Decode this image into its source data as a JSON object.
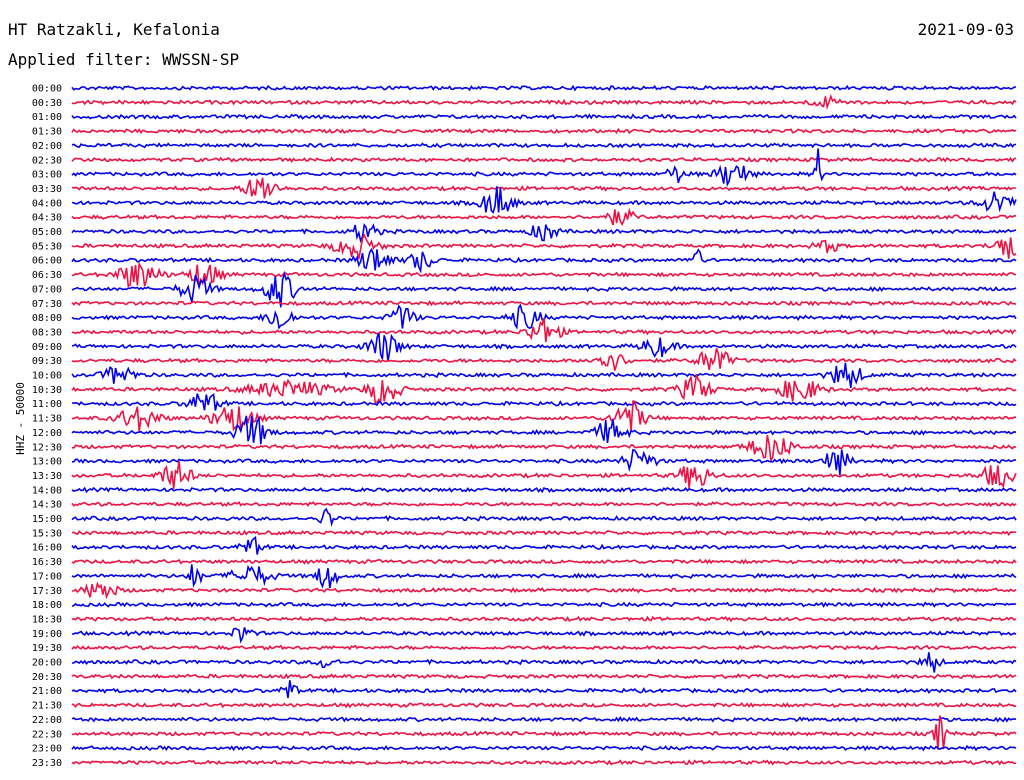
{
  "header": {
    "station": "HT Ratzakli, Kefalonia",
    "filter": "Applied filter: WWSSN-SP",
    "date": "2021-09-03"
  },
  "chart_data": {
    "type": "line",
    "title": "HT Ratzakli, Kefalonia",
    "subtitle": "Applied filter: WWSSN-SP",
    "date": "2021-09-03",
    "ylabel": "HHZ - 50000",
    "row_labels": [
      "00:00",
      "00:30",
      "01:00",
      "01:30",
      "02:00",
      "02:30",
      "03:00",
      "03:30",
      "04:00",
      "04:30",
      "05:00",
      "05:30",
      "06:00",
      "06:30",
      "07:00",
      "07:30",
      "08:00",
      "08:30",
      "09:00",
      "09:30",
      "10:00",
      "10:30",
      "11:00",
      "11:30",
      "12:00",
      "12:30",
      "13:00",
      "13:30",
      "14:00",
      "14:30",
      "15:00",
      "15:30",
      "16:00",
      "16:30",
      "17:00",
      "17:30",
      "18:00",
      "18:30",
      "19:00",
      "19:30",
      "20:00",
      "20:30",
      "21:00",
      "21:30",
      "22:00",
      "22:30",
      "23:00",
      "23:30"
    ],
    "trace_colors": [
      "#0000ee",
      "#ee1144"
    ],
    "grid": false,
    "bursts": [
      {
        "row": 1,
        "t": 0.8,
        "a": 5,
        "w": 0.015
      },
      {
        "row": 6,
        "t": 0.64,
        "a": 8,
        "w": 0.01
      },
      {
        "row": 6,
        "t": 0.7,
        "a": 14,
        "w": 0.015
      },
      {
        "row": 6,
        "t": 0.79,
        "a": 28,
        "w": 0.003
      },
      {
        "row": 7,
        "t": 0.2,
        "a": 14,
        "w": 0.015
      },
      {
        "row": 8,
        "t": 0.45,
        "a": 16,
        "w": 0.015
      },
      {
        "row": 8,
        "t": 0.98,
        "a": 12,
        "w": 0.015
      },
      {
        "row": 9,
        "t": 0.58,
        "a": 8,
        "w": 0.015
      },
      {
        "row": 10,
        "t": 0.31,
        "a": 10,
        "w": 0.012
      },
      {
        "row": 10,
        "t": 0.5,
        "a": 10,
        "w": 0.012
      },
      {
        "row": 11,
        "t": 0.3,
        "a": 12,
        "w": 0.02
      },
      {
        "row": 11,
        "t": 0.8,
        "a": 6,
        "w": 0.012
      },
      {
        "row": 11,
        "t": 0.99,
        "a": 14,
        "w": 0.012
      },
      {
        "row": 12,
        "t": 0.32,
        "a": 14,
        "w": 0.015
      },
      {
        "row": 12,
        "t": 0.37,
        "a": 10,
        "w": 0.012
      },
      {
        "row": 12,
        "t": 0.66,
        "a": 14,
        "w": 0.006
      },
      {
        "row": 13,
        "t": 0.07,
        "a": 14,
        "w": 0.02
      },
      {
        "row": 13,
        "t": 0.14,
        "a": 13,
        "w": 0.015
      },
      {
        "row": 14,
        "t": 0.13,
        "a": 14,
        "w": 0.015
      },
      {
        "row": 14,
        "t": 0.22,
        "a": 18,
        "w": 0.015
      },
      {
        "row": 16,
        "t": 0.22,
        "a": 14,
        "w": 0.012
      },
      {
        "row": 16,
        "t": 0.35,
        "a": 12,
        "w": 0.012
      },
      {
        "row": 16,
        "t": 0.48,
        "a": 12,
        "w": 0.015
      },
      {
        "row": 17,
        "t": 0.5,
        "a": 14,
        "w": 0.015
      },
      {
        "row": 18,
        "t": 0.33,
        "a": 16,
        "w": 0.015
      },
      {
        "row": 18,
        "t": 0.62,
        "a": 10,
        "w": 0.015
      },
      {
        "row": 19,
        "t": 0.57,
        "a": 10,
        "w": 0.015
      },
      {
        "row": 19,
        "t": 0.68,
        "a": 14,
        "w": 0.015
      },
      {
        "row": 20,
        "t": 0.05,
        "a": 10,
        "w": 0.015
      },
      {
        "row": 20,
        "t": 0.82,
        "a": 14,
        "w": 0.015
      },
      {
        "row": 21,
        "t": 0.23,
        "a": 8,
        "w": 0.04
      },
      {
        "row": 21,
        "t": 0.33,
        "a": 16,
        "w": 0.015
      },
      {
        "row": 21,
        "t": 0.66,
        "a": 14,
        "w": 0.015
      },
      {
        "row": 21,
        "t": 0.77,
        "a": 12,
        "w": 0.02
      },
      {
        "row": 22,
        "t": 0.14,
        "a": 12,
        "w": 0.015
      },
      {
        "row": 23,
        "t": 0.07,
        "a": 12,
        "w": 0.02
      },
      {
        "row": 23,
        "t": 0.17,
        "a": 14,
        "w": 0.02
      },
      {
        "row": 23,
        "t": 0.59,
        "a": 18,
        "w": 0.015
      },
      {
        "row": 24,
        "t": 0.19,
        "a": 18,
        "w": 0.015
      },
      {
        "row": 24,
        "t": 0.57,
        "a": 12,
        "w": 0.015
      },
      {
        "row": 25,
        "t": 0.74,
        "a": 14,
        "w": 0.02
      },
      {
        "row": 26,
        "t": 0.6,
        "a": 12,
        "w": 0.015
      },
      {
        "row": 26,
        "t": 0.81,
        "a": 14,
        "w": 0.012
      },
      {
        "row": 27,
        "t": 0.11,
        "a": 14,
        "w": 0.015
      },
      {
        "row": 27,
        "t": 0.66,
        "a": 14,
        "w": 0.015
      },
      {
        "row": 27,
        "t": 0.98,
        "a": 12,
        "w": 0.015
      },
      {
        "row": 30,
        "t": 0.27,
        "a": 12,
        "w": 0.006
      },
      {
        "row": 32,
        "t": 0.19,
        "a": 10,
        "w": 0.01
      },
      {
        "row": 34,
        "t": 0.13,
        "a": 14,
        "w": 0.006
      },
      {
        "row": 34,
        "t": 0.19,
        "a": 10,
        "w": 0.02
      },
      {
        "row": 34,
        "t": 0.27,
        "a": 14,
        "w": 0.01
      },
      {
        "row": 35,
        "t": 0.03,
        "a": 10,
        "w": 0.015
      },
      {
        "row": 38,
        "t": 0.18,
        "a": 10,
        "w": 0.008
      },
      {
        "row": 40,
        "t": 0.27,
        "a": 6,
        "w": 0.01
      },
      {
        "row": 40,
        "t": 0.91,
        "a": 12,
        "w": 0.008
      },
      {
        "row": 42,
        "t": 0.23,
        "a": 14,
        "w": 0.006
      },
      {
        "row": 45,
        "t": 0.92,
        "a": 20,
        "w": 0.006
      }
    ]
  }
}
